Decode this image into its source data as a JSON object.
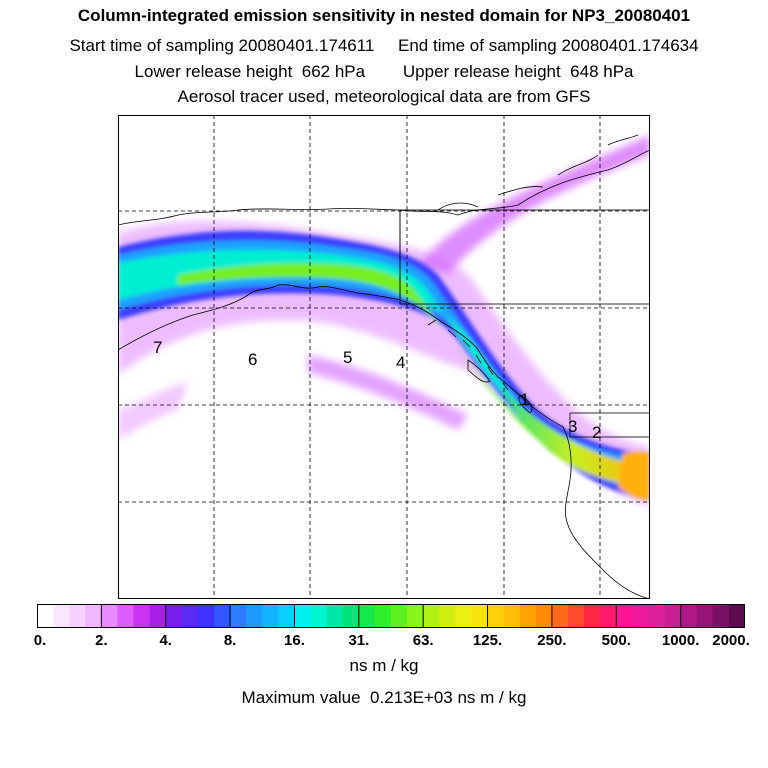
{
  "header": {
    "title": "Column-integrated emission sensitivity in nested domain for NP3_20080401",
    "line1": "Start time of sampling 20080401.174611     End time of sampling 20080401.174634",
    "line2": "Lower release height  662 hPa        Upper release height  648 hPa",
    "line3": "Aerosol tracer used, meteorological data are from GFS"
  },
  "map": {
    "point_labels": [
      "1",
      "2",
      "3",
      "4",
      "5",
      "6",
      "7"
    ]
  },
  "colorbar": {
    "labels": [
      "0.",
      "2.",
      "4.",
      "8.",
      "16.",
      "31.",
      "63.",
      "125.",
      "250.",
      "500.",
      "1000.",
      "2000."
    ],
    "colors": [
      "#ffffff",
      "#fbe6ff",
      "#f6d2ff",
      "#f0b7ff",
      "#e98cff",
      "#dc5cff",
      "#c933f2",
      "#a820e6",
      "#7a1ef0",
      "#5b2af5",
      "#3f33ff",
      "#3355ff",
      "#2e7bff",
      "#1f9bff",
      "#12b6ff",
      "#0ad0ff",
      "#00f0f0",
      "#00f5d0",
      "#00e8a8",
      "#00e27a",
      "#14e84a",
      "#2ef02a",
      "#5cf020",
      "#8af51a",
      "#b0f014",
      "#d0ee10",
      "#ebf010",
      "#f7e40c",
      "#ffd20a",
      "#ffbe08",
      "#ffa205",
      "#ff8a05",
      "#ff6a1a",
      "#ff4a2e",
      "#ff2645",
      "#ff1a6e",
      "#ff1496",
      "#f01aa0",
      "#dc1e9a",
      "#c81e95",
      "#b0188a",
      "#961478",
      "#7a1066",
      "#5c0c4e"
    ],
    "units": "ns m / kg"
  },
  "footer": {
    "max_value": "Maximum value  0.213E+03 ns m / kg"
  }
}
